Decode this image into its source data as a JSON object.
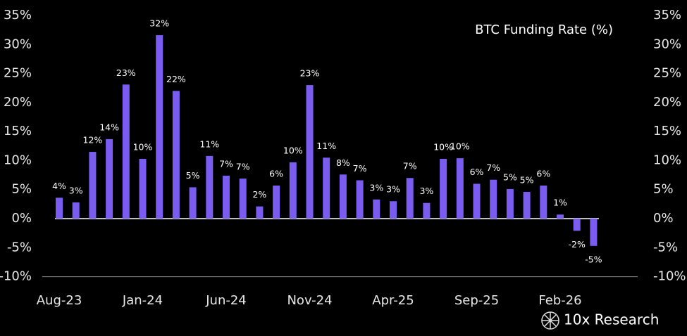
{
  "chart_data": {
    "type": "bar",
    "title": "BTC Funding Rate (%)",
    "categories": [
      "Aug-23",
      null,
      null,
      null,
      null,
      "Jan-24",
      null,
      null,
      null,
      null,
      "Jun-24",
      null,
      null,
      null,
      null,
      "Nov-24",
      null,
      null,
      null,
      null,
      "Apr-25",
      null,
      null,
      null,
      null,
      "Sep-25",
      null,
      null,
      null,
      null,
      "Feb-26",
      null,
      null
    ],
    "values": [
      3.6,
      2.8,
      11.5,
      13.7,
      23.1,
      10.3,
      31.6,
      22.0,
      5.4,
      10.8,
      7.4,
      6.9,
      2.1,
      5.7,
      9.7,
      23.0,
      10.5,
      7.6,
      6.6,
      3.3,
      3.0,
      7.0,
      2.7,
      10.3,
      10.4,
      6.0,
      6.7,
      5.1,
      4.6,
      5.7,
      0.7,
      -2.1,
      -4.7
    ],
    "value_labels": [
      "4%",
      "3%",
      "12%",
      "14%",
      "23%",
      "10%",
      "32%",
      "22%",
      "5%",
      "11%",
      "7%",
      "7%",
      "2%",
      "6%",
      "10%",
      "23%",
      "11%",
      "8%",
      "7%",
      "3%",
      "3%",
      "7%",
      "3%",
      "10%",
      "10%",
      "6%",
      "7%",
      "5%",
      "5%",
      "6%",
      "1%",
      "-2%",
      "-5%"
    ],
    "color": "#7b5cf0",
    "ylim": [
      -10,
      35
    ],
    "yticks": [
      {
        "value": -10,
        "label": "-10%"
      },
      {
        "value": -5,
        "label": "-5%"
      },
      {
        "value": 0,
        "label": "0%"
      },
      {
        "value": 5,
        "label": "5%"
      },
      {
        "value": 10,
        "label": "10%"
      },
      {
        "value": 15,
        "label": "15%"
      },
      {
        "value": 20,
        "label": "20%"
      },
      {
        "value": 25,
        "label": "25%"
      },
      {
        "value": 30,
        "label": "30%"
      },
      {
        "value": 35,
        "label": "35%"
      }
    ],
    "y2lim": [
      -10,
      35
    ],
    "y2ticks": [
      {
        "value": -10,
        "label": "-10%"
      },
      {
        "value": -5,
        "label": "-5%"
      },
      {
        "value": 0,
        "label": "0%"
      },
      {
        "value": 5,
        "label": "5%"
      },
      {
        "value": 10,
        "label": "10%"
      },
      {
        "value": 15,
        "label": "15%"
      },
      {
        "value": 20,
        "label": "20%"
      },
      {
        "value": 25,
        "label": "25%"
      },
      {
        "value": 30,
        "label": "30%"
      },
      {
        "value": 35,
        "label": "35%"
      }
    ],
    "watermark": "10x Research"
  }
}
